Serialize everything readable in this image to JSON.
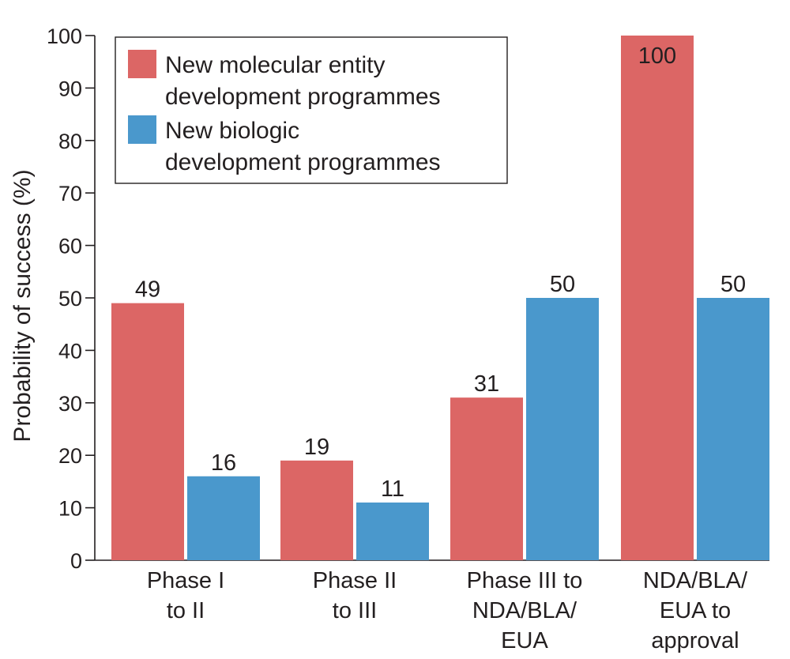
{
  "chart_data": {
    "type": "bar",
    "ylabel": "Probability of success (%)",
    "xlabel": "",
    "ylim": [
      0,
      100
    ],
    "yticks": [
      0,
      10,
      20,
      30,
      40,
      50,
      60,
      70,
      80,
      90,
      100
    ],
    "grid": false,
    "legend_position": "top-left",
    "categories": [
      [
        "Phase I",
        "to II"
      ],
      [
        "Phase II",
        "to III"
      ],
      [
        "Phase III to",
        "NDA/BLA/",
        "EUA"
      ],
      [
        "NDA/BLA/",
        "EUA to",
        "approval"
      ]
    ],
    "series": [
      {
        "name_lines": [
          "New molecular entity",
          "development programmes"
        ],
        "color": "#dc6665",
        "values": [
          49,
          19,
          31,
          100
        ]
      },
      {
        "name_lines": [
          "New biologic",
          "development programmes"
        ],
        "color": "#4a98cc",
        "values": [
          16,
          11,
          50,
          50
        ]
      }
    ]
  }
}
